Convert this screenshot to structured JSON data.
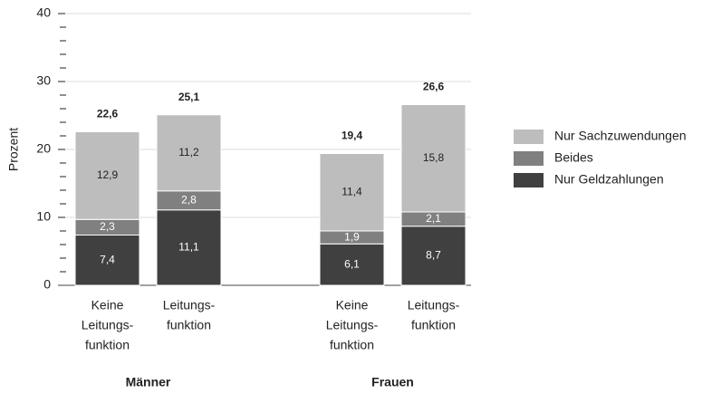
{
  "chart_data": {
    "type": "stacked_bar",
    "y_label": "Prozent",
    "categories": [
      [
        "Keine",
        "Leitungs-",
        "funktion"
      ],
      [
        "Leitungs-",
        "funktion"
      ],
      [
        "Keine",
        "Leitungs-",
        "funktion"
      ],
      [
        "Leitungs-",
        "funktion"
      ]
    ],
    "groups": [
      "Männer",
      "Frauen"
    ],
    "series": [
      {
        "name": "Nur Geldzahlungen",
        "color": "#404040",
        "label_color": "#ffffff",
        "values": [
          7.4,
          11.1,
          6.1,
          8.7
        ],
        "value_labels": [
          "7,4",
          "11,1",
          "6,1",
          "8,7"
        ]
      },
      {
        "name": "Beides",
        "color": "#808080",
        "label_color": "#ffffff",
        "values": [
          2.3,
          2.8,
          1.9,
          2.1
        ],
        "value_labels": [
          "2,3",
          "2,8",
          "1,9",
          "2,1"
        ]
      },
      {
        "name": "Nur Sachzuwendungen",
        "color": "#bdbdbd",
        "label_color": "#222222",
        "values": [
          12.9,
          11.2,
          11.4,
          15.8
        ],
        "value_labels": [
          "12,9",
          "11,2",
          "11,4",
          "15,8"
        ]
      }
    ],
    "totals": [
      22.6,
      25.1,
      19.4,
      26.6
    ],
    "total_labels": [
      "22,6",
      "25,1",
      "19,4",
      "26,6"
    ],
    "ylim": [
      0,
      40
    ],
    "yticks": [
      0,
      10,
      20,
      30,
      40
    ],
    "yminorticks": [
      2,
      4,
      6,
      8,
      12,
      14,
      16,
      18,
      22,
      24,
      26,
      28,
      32,
      34,
      36,
      38
    ],
    "grid": true,
    "legend": "right"
  }
}
